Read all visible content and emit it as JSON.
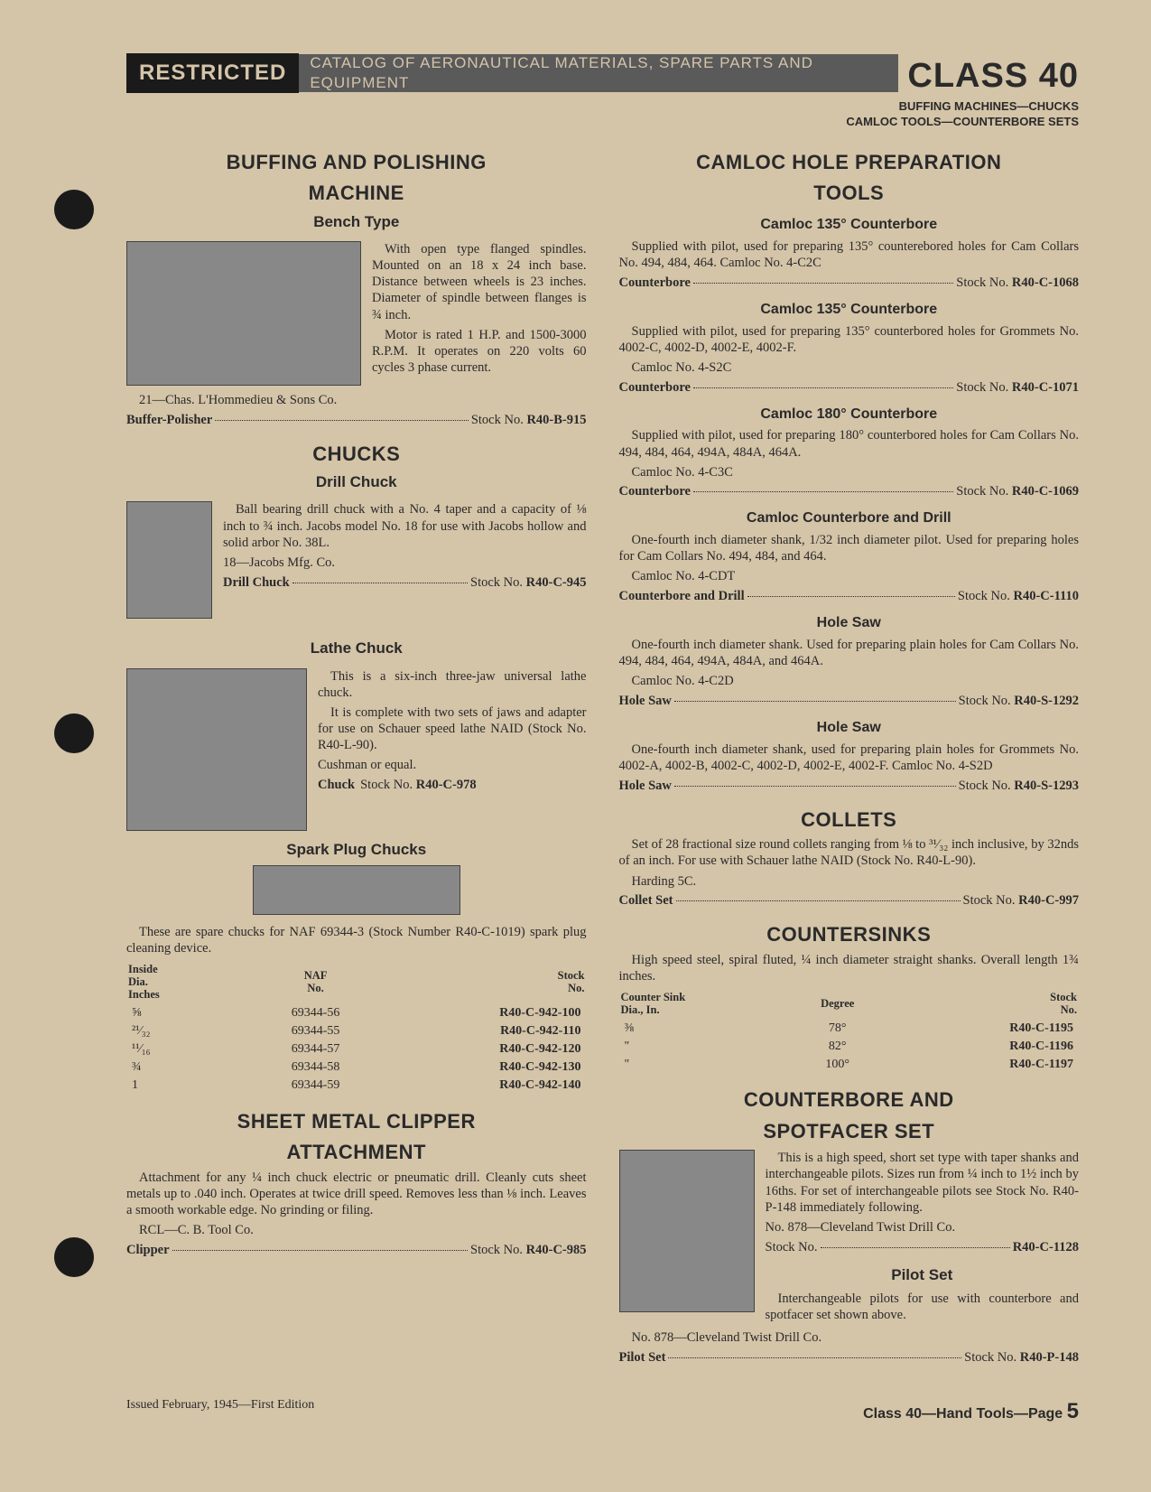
{
  "header": {
    "restricted": "RESTRICTED",
    "mid": "CATALOG OF AERONAUTICAL MATERIALS, SPARE PARTS AND EQUIPMENT",
    "class": "CLASS 40"
  },
  "subheader_line1": "BUFFING MACHINES—CHUCKS",
  "subheader_line2": "CAMLOC TOOLS—COUNTERBORE SETS",
  "left": {
    "buffing": {
      "title1": "BUFFING AND POLISHING",
      "title2": "MACHINE",
      "subtitle": "Bench Type",
      "desc": "With open type flanged spindles. Mounted on an 18 x 24 inch base. Distance between wheels is 23 inches. Diameter of spindle between flanges is ¾ inch.",
      "desc2": "Motor is rated 1 H.P. and 1500-3000 R.P.M. It operates on 220 volts 60 cycles 3 phase current.",
      "ref": "21—Chas. L'Hommedieu & Sons Co.",
      "stock_label": "Buffer-Polisher",
      "stock_text": "Stock No.",
      "stock_no": "R40-B-915"
    },
    "chucks": {
      "title": "CHUCKS",
      "drill": {
        "subtitle": "Drill Chuck",
        "desc": "Ball bearing drill chuck with a No. 4 taper and a capacity of ⅛ inch to ¾ inch. Jacobs model No. 18 for use with Jacobs hollow and solid arbor No. 38L.",
        "ref": "18—Jacobs Mfg. Co.",
        "stock_label": "Drill Chuck",
        "stock_text": "Stock No.",
        "stock_no": "R40-C-945"
      },
      "lathe": {
        "subtitle": "Lathe Chuck",
        "desc": "This is a six-inch three-jaw universal lathe chuck.",
        "desc2": "It is complete with two sets of jaws and adapter for use on Schauer speed lathe NAID (Stock No. R40-L-90).",
        "ref": "Cushman or equal.",
        "stock_label": "Chuck",
        "stock_text": "Stock No.",
        "stock_no": "R40-C-978"
      },
      "spark": {
        "subtitle": "Spark Plug Chucks",
        "desc": "These are spare chucks for NAF 69344-3 (Stock Number R40-C-1019) spark plug cleaning device.",
        "table": {
          "h1a": "Inside",
          "h1b": "Dia.",
          "h1c": "Inches",
          "h2a": "NAF",
          "h2b": "No.",
          "h3a": "Stock",
          "h3b": "No.",
          "rows": [
            {
              "dia": "⅝",
              "naf": "69344-56",
              "stock": "R40-C-942-100"
            },
            {
              "dia": "²¹⁄₃₂",
              "naf": "69344-55",
              "stock": "R40-C-942-110"
            },
            {
              "dia": "¹¹⁄₁₆",
              "naf": "69344-57",
              "stock": "R40-C-942-120"
            },
            {
              "dia": "¾",
              "naf": "69344-58",
              "stock": "R40-C-942-130"
            },
            {
              "dia": "1",
              "naf": "69344-59",
              "stock": "R40-C-942-140"
            }
          ]
        }
      }
    },
    "clipper": {
      "title1": "SHEET METAL CLIPPER",
      "title2": "ATTACHMENT",
      "desc": "Attachment for any ¼ inch chuck electric or pneumatic drill. Cleanly cuts sheet metals up to .040 inch. Operates at twice drill speed. Removes less than ⅛ inch. Leaves a smooth workable edge. No grinding or filing.",
      "ref": "RCL—C. B. Tool Co.",
      "stock_label": "Clipper",
      "stock_text": "Stock No.",
      "stock_no": "R40-C-985"
    }
  },
  "right": {
    "camloc": {
      "title1": "CAMLOC HOLE PREPARATION",
      "title2": "TOOLS",
      "items": [
        {
          "subtitle": "Camloc 135° Counterbore",
          "desc": "Supplied with pilot, used for preparing 135° counterebored holes for Cam Collars No. 494, 484, 464. Camloc No. 4-C2C",
          "stock_label": "Counterbore",
          "stock_no": "R40-C-1068"
        },
        {
          "subtitle": "Camloc 135° Counterbore",
          "desc": "Supplied with pilot, used for preparing 135° counterbored holes for Grommets No. 4002-C, 4002-D, 4002-E, 4002-F.",
          "ref": "Camloc No. 4-S2C",
          "stock_label": "Counterbore",
          "stock_no": "R40-C-1071"
        },
        {
          "subtitle": "Camloc 180° Counterbore",
          "desc": "Supplied with pilot, used for preparing 180° counterbored holes for Cam Collars No. 494, 484, 464, 494A, 484A, 464A.",
          "ref": "Camloc No. 4-C3C",
          "stock_label": "Counterbore",
          "stock_no": "R40-C-1069"
        },
        {
          "subtitle": "Camloc Counterbore and Drill",
          "desc": "One-fourth inch diameter shank, 1/32 inch diameter pilot. Used for preparing holes for Cam Collars No. 494, 484, and 464.",
          "ref": "Camloc No. 4-CDT",
          "stock_label": "Counterbore and Drill",
          "stock_no": "R40-C-1110"
        },
        {
          "subtitle": "Hole Saw",
          "desc": "One-fourth inch diameter shank. Used for preparing plain holes for Cam Collars No. 494, 484, 464, 494A, 484A, and 464A.",
          "ref": "Camloc No. 4-C2D",
          "stock_label": "Hole Saw",
          "stock_no": "R40-S-1292"
        },
        {
          "subtitle": "Hole Saw",
          "desc": "One-fourth inch diameter shank, used for preparing plain holes for Grommets No. 4002-A, 4002-B, 4002-C, 4002-D, 4002-E, 4002-F. Camloc No. 4-S2D",
          "stock_label": "Hole Saw",
          "stock_no": "R40-S-1293"
        }
      ]
    },
    "collets": {
      "title": "COLLETS",
      "desc": "Set of 28 fractional size round collets ranging from ⅛ to ³¹⁄₃₂ inch inclusive, by 32nds of an inch. For use with Schauer lathe NAID (Stock No. R40-L-90).",
      "ref": "Harding 5C.",
      "stock_label": "Collet Set",
      "stock_no": "R40-C-997"
    },
    "countersinks": {
      "title": "COUNTERSINKS",
      "desc": "High speed steel, spiral fluted, ¼ inch diameter straight shanks. Overall length 1¾ inches.",
      "table": {
        "h1a": "Counter Sink",
        "h1b": "Dia., In.",
        "h2": "Degree",
        "h3a": "Stock",
        "h3b": "No.",
        "rows": [
          {
            "dia": "⅜",
            "deg": "78°",
            "stock": "R40-C-1195"
          },
          {
            "dia": "\"",
            "deg": "82°",
            "stock": "R40-C-1196"
          },
          {
            "dia": "\"",
            "deg": "100°",
            "stock": "R40-C-1197"
          }
        ]
      }
    },
    "counterbore": {
      "title1": "COUNTERBORE AND",
      "title2": "SPOTFACER SET",
      "desc": "This is a high speed, short set type with taper shanks and interchangeable pilots. Sizes run from ¼ inch to 1½ inch by 16ths. For set of interchangeable pilots see Stock No. R40-P-148 immediately following.",
      "ref": "No. 878—Cleveland Twist Drill Co.",
      "stock_label": "Stock No.",
      "stock_no": "R40-C-1128"
    },
    "pilot": {
      "subtitle": "Pilot Set",
      "desc": "Interchangeable pilots for use with counterbore and spotfacer set shown above.",
      "ref": "No. 878—Cleveland Twist Drill Co.",
      "stock_label": "Pilot Set",
      "stock_no": "R40-P-148"
    }
  },
  "footer": {
    "left": "Issued February, 1945—First Edition",
    "right_text": "Class 40—Hand Tools—Page",
    "page": "5"
  },
  "stock_text": "Stock No."
}
